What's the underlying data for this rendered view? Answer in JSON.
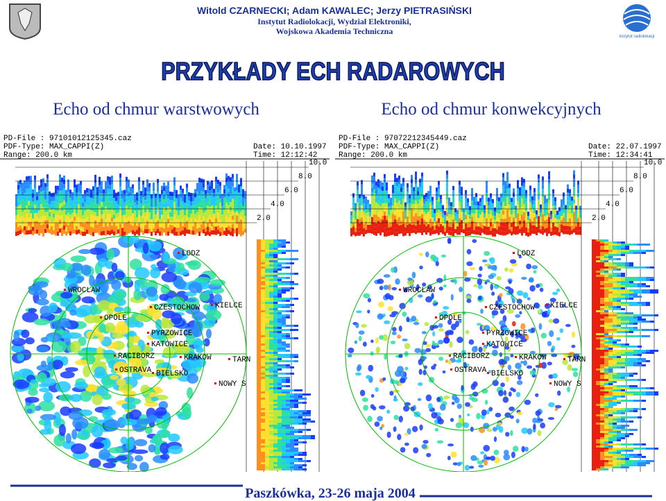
{
  "header": {
    "authors": "Witold CZARNECKI; Adam KAWALEC; Jerzy PIETRASIŃSKI",
    "institute": "Instytut Radiolokacji, Wydział Elektroniki,",
    "academy": "Wojskowa Akademia Techniczna",
    "logo_text": "instytut radiolokacji"
  },
  "title": "PRZYKŁADY ECH RADAROWYCH",
  "panels": [
    {
      "subtitle": "Echo od chmur warstwowych",
      "file": "PD-File : 97101012125345.caz",
      "type": "PDF-Type: MAX_CAPPI(Z)",
      "range": "Range: 200.0 km",
      "date": "Date: 10.10.1997",
      "time": "Time: 12:12:42",
      "heights": [
        "10.0",
        "8.0",
        "6.0",
        "4.0",
        "2.0"
      ],
      "cities": [
        "LODZ",
        "WROCLAW",
        "CZESTOCHOW",
        "KIELCE",
        "OPOLE",
        "PYRZOWICE",
        "KATOWICE",
        "RACIBORZ",
        "KRAKOW",
        "TARN",
        "OSTRAVA",
        "BIELSKO",
        "NOWY S"
      ]
    },
    {
      "subtitle": "Echo od chmur konwekcyjnych",
      "file": "PD-File : 97072212345449.caz",
      "type": "PDF-Type: MAX_CAPPI(Z)",
      "range": "Range: 200.0 km",
      "date": "Date: 22.07.1997",
      "time": "Time: 12:34:41",
      "heights": [
        "10.0",
        "8.0",
        "6.0",
        "4.0",
        "2.0"
      ],
      "cities": [
        "LODZ",
        "WROCLAW",
        "CZESTOCHOW",
        "KIELCE",
        "OPOLE",
        "PYRZOWICE",
        "KATOWICE",
        "RACIBORZ",
        "KRAKOW",
        "TARN",
        "OSTRAVA",
        "BIELSKO",
        "NOWY S"
      ]
    }
  ],
  "footer": "Paszkówka, 23-26 maja 2004"
}
